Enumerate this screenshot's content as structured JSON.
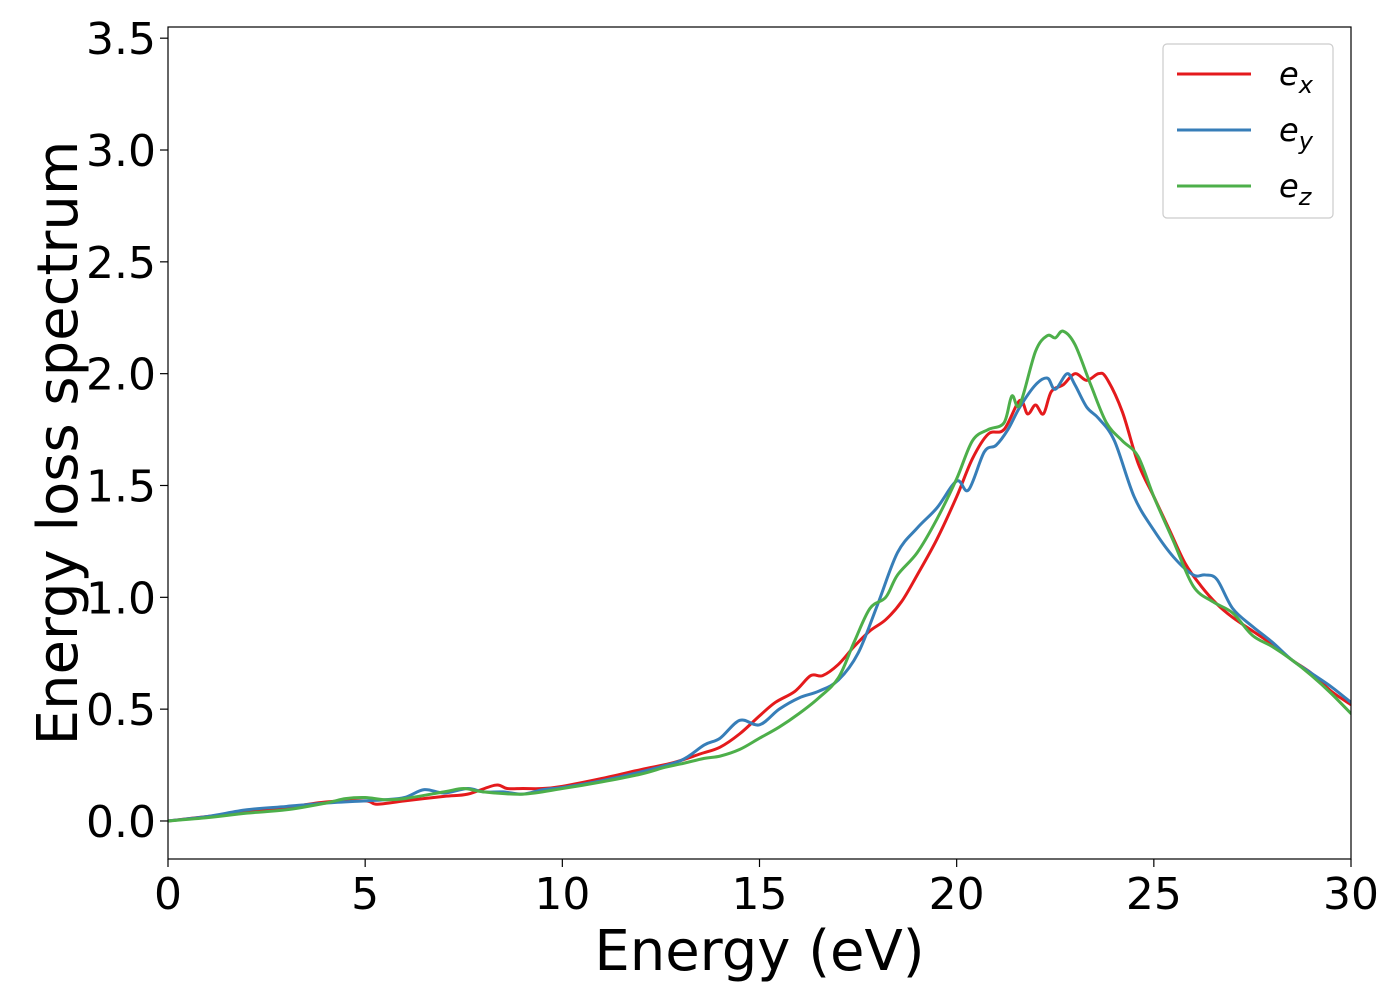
{
  "chart_data": {
    "type": "line",
    "xlabel": "Energy (eV)",
    "ylabel": "Energy loss spectrum",
    "xlim": [
      0,
      30
    ],
    "ylim": [
      -0.17,
      3.55
    ],
    "x_ticks": [
      0,
      5,
      10,
      15,
      20,
      25,
      30
    ],
    "y_ticks": [
      0.0,
      0.5,
      1.0,
      1.5,
      2.0,
      2.5,
      3.0,
      3.5
    ],
    "x_tick_labels": [
      "0",
      "5",
      "10",
      "15",
      "20",
      "25",
      "30"
    ],
    "y_tick_labels": [
      "0.0",
      "0.5",
      "1.0",
      "1.5",
      "2.0",
      "2.5",
      "3.0",
      "3.5"
    ],
    "grid": false,
    "legend_position": "top-right",
    "series": [
      {
        "name": "e_x",
        "label_base": "e",
        "label_sub": "x",
        "color": "#e41a1c",
        "points": [
          [
            0,
            0
          ],
          [
            1,
            0.02
          ],
          [
            2,
            0.04
          ],
          [
            3,
            0.06
          ],
          [
            4,
            0.085
          ],
          [
            5,
            0.09
          ],
          [
            5.3,
            0.075
          ],
          [
            6,
            0.09
          ],
          [
            7,
            0.11
          ],
          [
            7.6,
            0.12
          ],
          [
            8.3,
            0.16
          ],
          [
            8.6,
            0.145
          ],
          [
            9,
            0.145
          ],
          [
            9.5,
            0.145
          ],
          [
            10,
            0.155
          ],
          [
            11,
            0.19
          ],
          [
            12,
            0.23
          ],
          [
            12.8,
            0.26
          ],
          [
            13.5,
            0.3
          ],
          [
            14,
            0.33
          ],
          [
            14.5,
            0.39
          ],
          [
            15,
            0.47
          ],
          [
            15.4,
            0.53
          ],
          [
            15.9,
            0.58
          ],
          [
            16.3,
            0.65
          ],
          [
            16.6,
            0.65
          ],
          [
            17,
            0.7
          ],
          [
            17.4,
            0.78
          ],
          [
            17.8,
            0.85
          ],
          [
            18.2,
            0.9
          ],
          [
            18.6,
            0.98
          ],
          [
            19,
            1.1
          ],
          [
            19.5,
            1.26
          ],
          [
            20,
            1.45
          ],
          [
            20.4,
            1.62
          ],
          [
            20.8,
            1.73
          ],
          [
            21.2,
            1.75
          ],
          [
            21.6,
            1.88
          ],
          [
            21.8,
            1.82
          ],
          [
            22,
            1.86
          ],
          [
            22.2,
            1.82
          ],
          [
            22.4,
            1.92
          ],
          [
            22.7,
            1.95
          ],
          [
            23,
            2.0
          ],
          [
            23.3,
            1.97
          ],
          [
            23.6,
            2.0
          ],
          [
            23.8,
            1.98
          ],
          [
            24.2,
            1.83
          ],
          [
            24.6,
            1.6
          ],
          [
            25,
            1.45
          ],
          [
            25.4,
            1.3
          ],
          [
            25.8,
            1.15
          ],
          [
            26.2,
            1.05
          ],
          [
            26.6,
            0.97
          ],
          [
            27,
            0.91
          ],
          [
            27.5,
            0.85
          ],
          [
            28,
            0.79
          ],
          [
            28.5,
            0.72
          ],
          [
            29,
            0.66
          ],
          [
            29.5,
            0.58
          ],
          [
            30,
            0.52
          ]
        ]
      },
      {
        "name": "e_y",
        "label_base": "e",
        "label_sub": "y",
        "color": "#377eb8",
        "points": [
          [
            0,
            0
          ],
          [
            1,
            0.02
          ],
          [
            2,
            0.05
          ],
          [
            3,
            0.065
          ],
          [
            4,
            0.08
          ],
          [
            5,
            0.09
          ],
          [
            5.5,
            0.095
          ],
          [
            6,
            0.105
          ],
          [
            6.5,
            0.14
          ],
          [
            7,
            0.125
          ],
          [
            7.6,
            0.145
          ],
          [
            8,
            0.13
          ],
          [
            8.5,
            0.13
          ],
          [
            9,
            0.12
          ],
          [
            9.5,
            0.14
          ],
          [
            10,
            0.15
          ],
          [
            11,
            0.18
          ],
          [
            12,
            0.22
          ],
          [
            13,
            0.27
          ],
          [
            13.6,
            0.34
          ],
          [
            14,
            0.37
          ],
          [
            14.5,
            0.45
          ],
          [
            15,
            0.43
          ],
          [
            15.5,
            0.5
          ],
          [
            16,
            0.55
          ],
          [
            16.5,
            0.58
          ],
          [
            17,
            0.63
          ],
          [
            17.5,
            0.75
          ],
          [
            18,
            0.97
          ],
          [
            18.5,
            1.2
          ],
          [
            19,
            1.31
          ],
          [
            19.5,
            1.4
          ],
          [
            20,
            1.52
          ],
          [
            20.3,
            1.48
          ],
          [
            20.7,
            1.65
          ],
          [
            21,
            1.68
          ],
          [
            21.3,
            1.75
          ],
          [
            21.6,
            1.85
          ],
          [
            22,
            1.95
          ],
          [
            22.3,
            1.98
          ],
          [
            22.5,
            1.93
          ],
          [
            22.8,
            2.0
          ],
          [
            23,
            1.95
          ],
          [
            23.3,
            1.85
          ],
          [
            23.6,
            1.8
          ],
          [
            24,
            1.7
          ],
          [
            24.5,
            1.45
          ],
          [
            25,
            1.3
          ],
          [
            25.5,
            1.18
          ],
          [
            26,
            1.1
          ],
          [
            26.3,
            1.1
          ],
          [
            26.6,
            1.08
          ],
          [
            27,
            0.95
          ],
          [
            27.5,
            0.87
          ],
          [
            28,
            0.8
          ],
          [
            28.5,
            0.72
          ],
          [
            29,
            0.66
          ],
          [
            29.5,
            0.6
          ],
          [
            30,
            0.53
          ]
        ]
      },
      {
        "name": "e_z",
        "label_base": "e",
        "label_sub": "z",
        "color": "#4daf4a",
        "points": [
          [
            0,
            0
          ],
          [
            1,
            0.015
          ],
          [
            2,
            0.035
          ],
          [
            3,
            0.05
          ],
          [
            4,
            0.08
          ],
          [
            4.5,
            0.1
          ],
          [
            5,
            0.105
          ],
          [
            5.5,
            0.095
          ],
          [
            6,
            0.1
          ],
          [
            7,
            0.13
          ],
          [
            7.5,
            0.145
          ],
          [
            8,
            0.13
          ],
          [
            9,
            0.12
          ],
          [
            10,
            0.145
          ],
          [
            11,
            0.175
          ],
          [
            12,
            0.21
          ],
          [
            12.6,
            0.24
          ],
          [
            13,
            0.255
          ],
          [
            13.6,
            0.28
          ],
          [
            14,
            0.29
          ],
          [
            14.5,
            0.32
          ],
          [
            15,
            0.37
          ],
          [
            15.5,
            0.42
          ],
          [
            16,
            0.48
          ],
          [
            16.5,
            0.55
          ],
          [
            17,
            0.64
          ],
          [
            17.4,
            0.8
          ],
          [
            17.8,
            0.95
          ],
          [
            18.2,
            1.0
          ],
          [
            18.5,
            1.1
          ],
          [
            19,
            1.2
          ],
          [
            19.5,
            1.35
          ],
          [
            20,
            1.53
          ],
          [
            20.4,
            1.7
          ],
          [
            20.8,
            1.75
          ],
          [
            21.2,
            1.78
          ],
          [
            21.4,
            1.9
          ],
          [
            21.6,
            1.86
          ],
          [
            22,
            2.1
          ],
          [
            22.3,
            2.17
          ],
          [
            22.5,
            2.16
          ],
          [
            22.7,
            2.19
          ],
          [
            23,
            2.13
          ],
          [
            23.4,
            1.95
          ],
          [
            23.8,
            1.78
          ],
          [
            24.2,
            1.7
          ],
          [
            24.6,
            1.63
          ],
          [
            25,
            1.45
          ],
          [
            25.5,
            1.25
          ],
          [
            26,
            1.05
          ],
          [
            26.5,
            0.98
          ],
          [
            27,
            0.93
          ],
          [
            27.5,
            0.83
          ],
          [
            28,
            0.78
          ],
          [
            28.5,
            0.72
          ],
          [
            29,
            0.65
          ],
          [
            29.5,
            0.57
          ],
          [
            30,
            0.48
          ]
        ]
      }
    ]
  }
}
